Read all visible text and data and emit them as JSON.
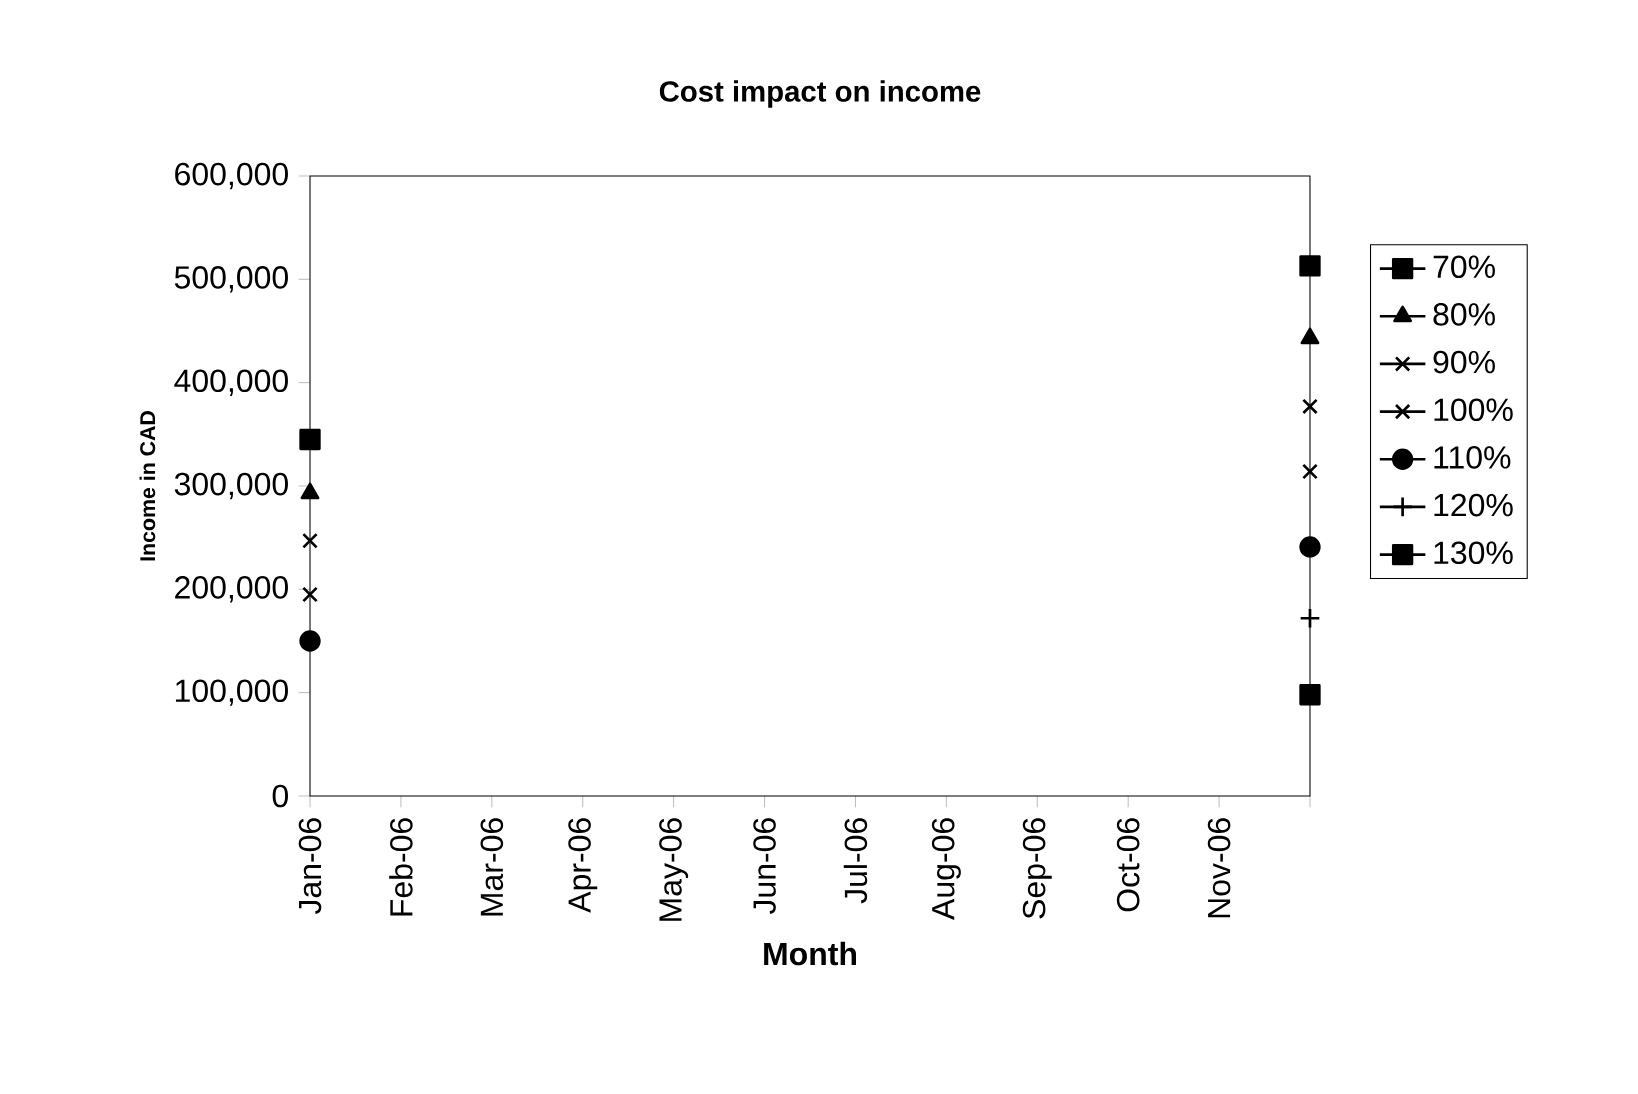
{
  "chart_data": {
    "type": "line",
    "title": "Cost impact on income",
    "xlabel": "Month",
    "ylabel": "Income in CAD",
    "categories": [
      "Jan-06",
      "Feb-06",
      "Mar-06",
      "Apr-06",
      "May-06",
      "Jun-06",
      "Jul-06",
      "Aug-06",
      "Sep-06",
      "Oct-06",
      "Nov-06",
      null
    ],
    "series": [
      {
        "name": "70%",
        "color": "#000000",
        "marker": "square",
        "values": [
          345000,
          null,
          null,
          null,
          null,
          null,
          null,
          null,
          null,
          null,
          null,
          513000
        ]
      },
      {
        "name": "80%",
        "color": "#000000",
        "marker": "triangle",
        "values": [
          293000,
          null,
          null,
          null,
          null,
          null,
          null,
          null,
          null,
          null,
          null,
          443000
        ]
      },
      {
        "name": "90%",
        "color": "#000000",
        "marker": "cross",
        "values": [
          247000,
          null,
          null,
          null,
          null,
          null,
          null,
          null,
          null,
          null,
          null,
          377000
        ]
      },
      {
        "name": "100%",
        "color": "#000000",
        "marker": "cross",
        "values": [
          195000,
          null,
          null,
          null,
          null,
          null,
          null,
          null,
          null,
          null,
          null,
          314000
        ]
      },
      {
        "name": "110%",
        "color": "#000000",
        "marker": "circle",
        "values": [
          150000,
          null,
          null,
          null,
          null,
          null,
          null,
          null,
          null,
          null,
          null,
          241000
        ]
      },
      {
        "name": "120%",
        "color": "#000000",
        "marker": "plus",
        "values": [
          null,
          null,
          null,
          null,
          null,
          null,
          null,
          null,
          null,
          null,
          null,
          172000
        ]
      },
      {
        "name": "130%",
        "color": "#000000",
        "marker": "square",
        "values": [
          null,
          null,
          null,
          null,
          null,
          null,
          null,
          null,
          null,
          null,
          null,
          98000
        ]
      }
    ],
    "ylim": [
      0,
      600000
    ],
    "yticks": [
      0,
      {
        "value": 100000,
        "label": "100,000"
      },
      {
        "value": 200000,
        "label": "200,000"
      },
      {
        "value": 300000,
        "label": "300,000"
      },
      {
        "value": 400000,
        "label": "400,000"
      },
      {
        "value": 500000,
        "label": "500,000"
      },
      {
        "value": 600000,
        "label": "600,000"
      }
    ],
    "legend": "right",
    "grid": false,
    "line_style": "solid"
  }
}
